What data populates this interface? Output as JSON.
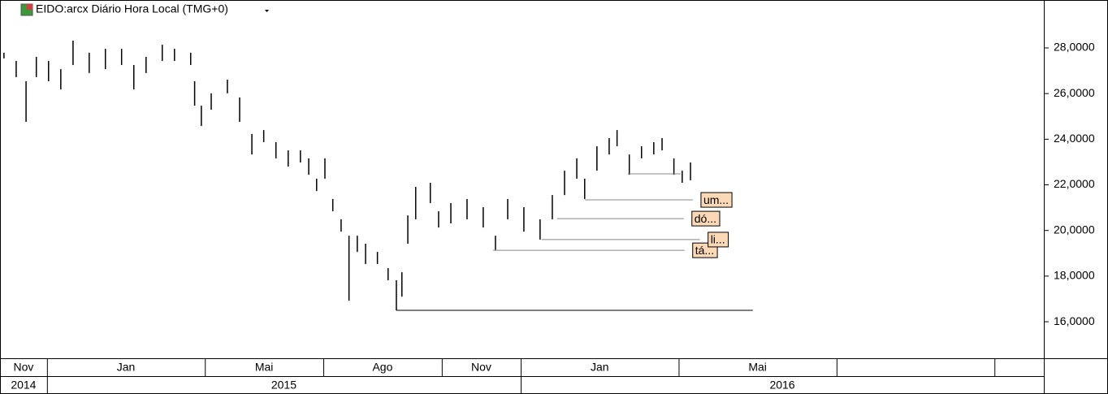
{
  "chart_data": {
    "type": "range-bar",
    "title": "EIDO:arcx Diário Hora Local (TMG+0)",
    "color": "#000000",
    "x": [
      -1.09,
      -0.78,
      -0.53,
      -0.27,
      0.04,
      0.35,
      0.66,
      1.07,
      1.48,
      1.89,
      2.2,
      2.51,
      2.92,
      3.23,
      3.64,
      3.74,
      3.91,
      4.16,
      4.57,
      4.88,
      5.19,
      5.49,
      5.8,
      6.11,
      6.42,
      6.63,
      6.83,
      7.04,
      7.24,
      7.45,
      7.65,
      7.86,
      8.07,
      8.37,
      8.64,
      8.85,
      8.99,
      9.14,
      9.34,
      9.71,
      9.92,
      10.23,
      10.64,
      11.05,
      11.36,
      11.67,
      12.08,
      12.49,
      12.8,
      13.11,
      13.42,
      13.62,
      13.93,
      14.24,
      14.44,
      14.75,
      15.06,
      15.37,
      15.58,
      15.88,
      16.09,
      16.3
    ],
    "high": [
      27.79,
      27.43,
      26.54,
      27.61,
      27.43,
      27.07,
      28.32,
      27.79,
      27.96,
      27.96,
      27.25,
      27.61,
      28.14,
      27.96,
      27.79,
      26.54,
      25.47,
      26.01,
      26.61,
      25.83,
      24.23,
      24.4,
      23.87,
      23.51,
      23.51,
      23.16,
      22.27,
      23.16,
      21.38,
      20.49,
      19.77,
      19.77,
      19.42,
      19.06,
      18.35,
      17.82,
      18.17,
      20.66,
      21.91,
      22.09,
      20.84,
      21.2,
      21.38,
      21.02,
      19.77,
      21.38,
      21.02,
      20.49,
      21.55,
      22.62,
      23.16,
      22.27,
      23.69,
      24.05,
      24.4,
      23.33,
      23.69,
      23.87,
      24.05,
      23.16,
      22.62,
      22.98
    ],
    "low": [
      27.54,
      26.72,
      24.76,
      26.72,
      26.54,
      26.18,
      27.25,
      26.9,
      27.07,
      27.25,
      26.18,
      26.9,
      27.43,
      27.43,
      27.25,
      25.47,
      24.58,
      25.29,
      26.01,
      24.76,
      23.33,
      23.87,
      23.16,
      22.8,
      22.98,
      22.44,
      21.73,
      22.27,
      20.84,
      19.95,
      16.92,
      19.06,
      18.53,
      18.53,
      17.82,
      16.5,
      17.1,
      19.42,
      20.49,
      21.2,
      20.13,
      20.31,
      20.49,
      20.13,
      19.13,
      20.49,
      19.95,
      19.6,
      20.49,
      21.55,
      22.27,
      21.38,
      22.62,
      23.33,
      23.69,
      22.44,
      23.16,
      23.33,
      23.51,
      22.44,
      22.09,
      22.2
    ],
    "levels": [
      {
        "value": 16.5,
        "from": 8.85,
        "to": 17.88
      },
      {
        "value": 19.13,
        "from": 11.3,
        "to": 16.15,
        "label": "tá..."
      },
      {
        "value": 19.6,
        "from": 12.53,
        "to": 16.54,
        "label": "li..."
      },
      {
        "value": 20.52,
        "from": 12.92,
        "to": 16.13,
        "label": "dó..."
      },
      {
        "value": 21.34,
        "from": 13.62,
        "to": 16.36,
        "label": "um..."
      },
      {
        "value": 22.48,
        "from": 14.71,
        "to": 16.05
      }
    ],
    "xlim": [
      -1.19,
      25.25
    ],
    "ylim": [
      14.4,
      30.1
    ],
    "yticks": [
      {
        "value": 16,
        "label": "16,0000"
      },
      {
        "value": 18,
        "label": "18,0000"
      },
      {
        "value": 20,
        "label": "20,0000"
      },
      {
        "value": 22,
        "label": "22,0000"
      },
      {
        "value": 24,
        "label": "24,0000"
      },
      {
        "value": 26,
        "label": "26,0000"
      },
      {
        "value": 28,
        "label": "28,0000"
      }
    ],
    "month_bands": [
      {
        "label": "Nov",
        "from": -2,
        "to": 0
      },
      {
        "label": "Jan",
        "from": 0,
        "to": 4
      },
      {
        "label": "Mai",
        "from": 4,
        "to": 7
      },
      {
        "label": "Ago",
        "from": 7,
        "to": 10
      },
      {
        "label": "Nov",
        "from": 10,
        "to": 12
      },
      {
        "label": "Jan",
        "from": 12,
        "to": 16
      },
      {
        "label": "Mai",
        "from": 16,
        "to": 20
      },
      {
        "label": null,
        "from": 20,
        "to": 24
      },
      {
        "label": null,
        "from": 24,
        "to": 28
      }
    ],
    "year_bands": [
      {
        "label": "2014",
        "from": -2,
        "to": 0
      },
      {
        "label": "2015",
        "from": 0,
        "to": 12
      },
      {
        "label": "2016",
        "from": 12,
        "to": 28
      }
    ]
  }
}
